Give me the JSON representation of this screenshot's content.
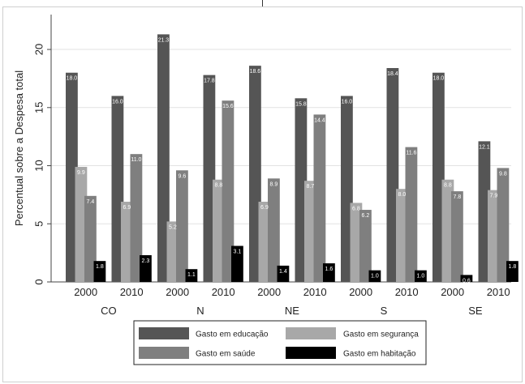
{
  "chart_data": {
    "type": "bar",
    "ylabel": "Percentual sobre a Despesa total",
    "ylim": [
      0,
      23
    ],
    "yticks": [
      0,
      5,
      10,
      15,
      20
    ],
    "grid": true,
    "legend_position": "bottom",
    "series_colors": [
      "#555555",
      "#a8a8a8",
      "#7f7f7f",
      "#000000"
    ],
    "groups": [
      {
        "region": "CO",
        "years": [
          {
            "year": "2000",
            "values": [
              18.0,
              9.9,
              7.4,
              1.8
            ]
          },
          {
            "year": "2010",
            "values": [
              16.0,
              6.9,
              11.0,
              2.3
            ]
          }
        ]
      },
      {
        "region": "N",
        "years": [
          {
            "year": "2000",
            "values": [
              21.3,
              5.2,
              9.6,
              1.1
            ]
          },
          {
            "year": "2010",
            "values": [
              17.8,
              8.8,
              15.6,
              3.1
            ]
          }
        ]
      },
      {
        "region": "NE",
        "years": [
          {
            "year": "2000",
            "values": [
              18.6,
              6.9,
              8.9,
              1.4
            ]
          },
          {
            "year": "2010",
            "values": [
              15.8,
              8.7,
              14.4,
              1.6
            ]
          }
        ]
      },
      {
        "region": "S",
        "years": [
          {
            "year": "2000",
            "values": [
              16.0,
              6.8,
              6.2,
              1.0
            ]
          },
          {
            "year": "2010",
            "values": [
              18.4,
              8.0,
              11.6,
              1.0
            ]
          }
        ]
      },
      {
        "region": "SE",
        "years": [
          {
            "year": "2000",
            "values": [
              18.0,
              8.8,
              7.8,
              0.6
            ]
          },
          {
            "year": "2010",
            "values": [
              12.1,
              7.9,
              9.8,
              1.8
            ]
          }
        ]
      }
    ],
    "legend": [
      "Gasto em educação",
      "Gasto em segurança",
      "Gasto em saúde",
      "Gasto em habitação"
    ]
  }
}
